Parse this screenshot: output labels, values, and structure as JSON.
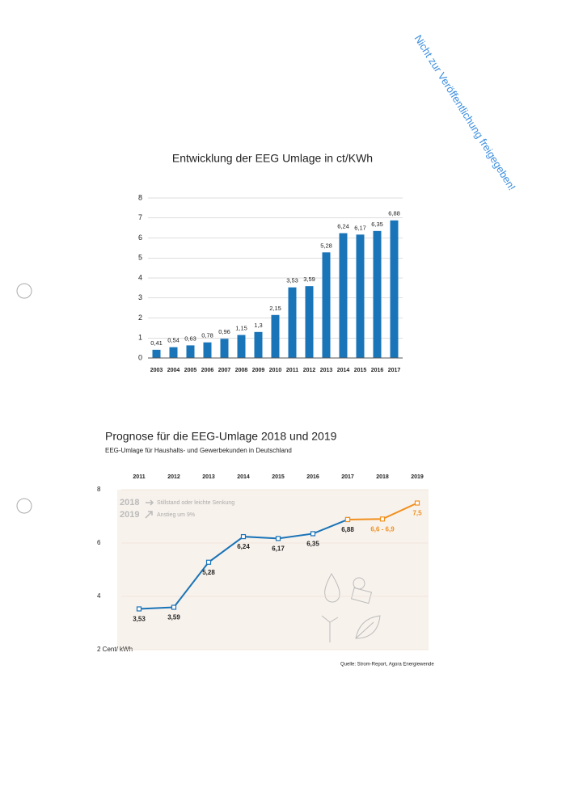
{
  "stamp": "Nicht zur Veröffentlichung freigegeben!",
  "source": "Quelle: Strom-Report, Agora Energiewende",
  "chart_data": [
    {
      "type": "bar",
      "title": "Entwicklung der EEG Umlage in ct/KWh",
      "categories": [
        "2003",
        "2004",
        "2005",
        "2006",
        "2007",
        "2008",
        "2009",
        "2010",
        "2011",
        "2012",
        "2013",
        "2014",
        "2015",
        "2016",
        "2017"
      ],
      "values": [
        0.41,
        0.54,
        0.63,
        0.78,
        0.96,
        1.15,
        1.3,
        2.15,
        3.53,
        3.59,
        5.28,
        6.24,
        6.17,
        6.35,
        6.88
      ],
      "value_labels": [
        "0,41",
        "0,54",
        "0,63",
        "0,78",
        "0,96",
        "1,15",
        "1,3",
        "2,15",
        "3,53",
        "3,59",
        "5,28",
        "6,24",
        "6,17",
        "6,35",
        "6,88"
      ],
      "color": "#1a74b8",
      "ylim": [
        0,
        8
      ],
      "yticks": [
        0,
        1,
        2,
        3,
        4,
        5,
        6,
        7,
        8
      ],
      "grid": true
    },
    {
      "type": "line",
      "title": "Prognose für die EEG-Umlage 2018 und 2019",
      "subtitle": "EEG-Umlage für Haushalts- und Gewerbekunden in Deutschland",
      "categories": [
        "2011",
        "2012",
        "2013",
        "2014",
        "2015",
        "2016",
        "2017",
        "2018",
        "2019"
      ],
      "series": [
        {
          "color": "#1a74b8",
          "values": [
            3.53,
            3.59,
            5.28,
            6.24,
            6.17,
            6.35,
            6.88,
            null,
            null
          ],
          "value_labels": [
            "3,53",
            "3,59",
            "5,28",
            "6,24",
            "6,17",
            "6,35",
            "6,88",
            null,
            null
          ]
        },
        {
          "color": "#f0901e",
          "values": [
            null,
            null,
            null,
            null,
            null,
            null,
            6.88,
            6.9,
            7.5
          ],
          "value_labels": [
            null,
            null,
            null,
            null,
            null,
            null,
            null,
            "6,6 - 6,9",
            "7,5"
          ]
        }
      ],
      "ylim": [
        2,
        8
      ],
      "yticks": [
        {
          "value": 2,
          "label": "2 Cent/ kWh"
        },
        4,
        6,
        8
      ],
      "annotations": [
        {
          "year": "2018",
          "text": "Stillstand oder leichte Senkung"
        },
        {
          "year": "2019",
          "text": "Anstieg um 9%"
        }
      ]
    }
  ]
}
